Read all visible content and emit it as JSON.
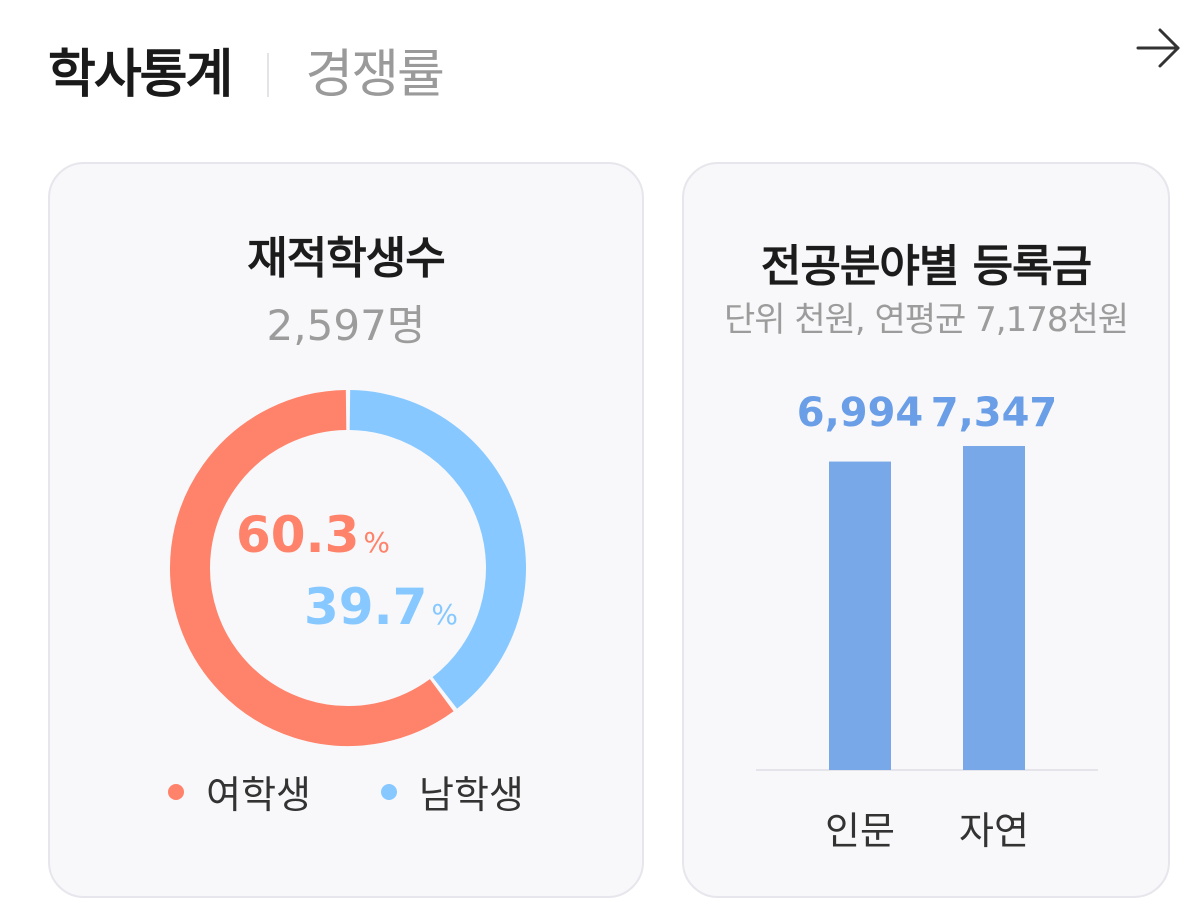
{
  "header": {
    "tabs": [
      {
        "label": "학사통계",
        "active": true
      },
      {
        "label": "경쟁률",
        "active": false
      }
    ],
    "arrow_icon": "arrow-right-icon"
  },
  "colors": {
    "female": "#FF826A",
    "male": "#86C8FF",
    "bar": "#78A8E8",
    "bar_label": "#6A9EE6"
  },
  "chart_data": [
    {
      "type": "pie",
      "title": "재적학생수",
      "subtitle": "2,597명",
      "slices": [
        {
          "name": "여학생",
          "value": 60.3,
          "label": "60.3",
          "unit": "%"
        },
        {
          "name": "남학생",
          "value": 39.7,
          "label": "39.7",
          "unit": "%"
        }
      ]
    },
    {
      "type": "bar",
      "title": "전공분야별 등록금",
      "subtitle": "단위 천원, 연평균 7,178천원",
      "categories": [
        "인문",
        "자연"
      ],
      "values": [
        6994,
        7347
      ],
      "labels": [
        "6,994",
        "7,347"
      ]
    }
  ]
}
